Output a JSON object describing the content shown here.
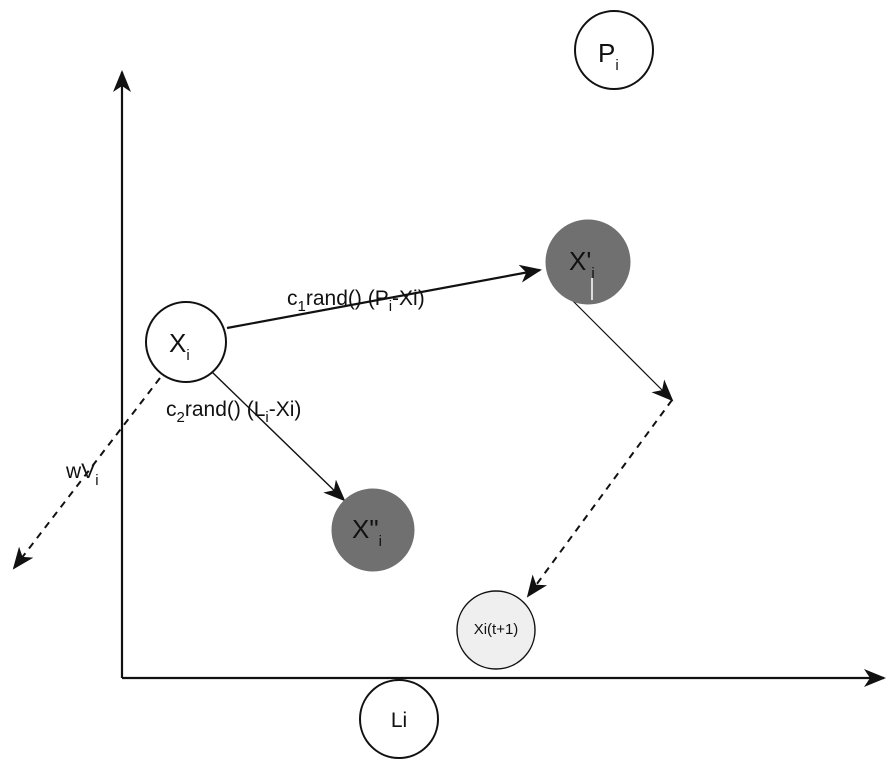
{
  "colors": {
    "background": "#ffffff",
    "stroke": "#111111",
    "node_white": "#ffffff",
    "node_dark": "#707070",
    "node_light": "#efefef"
  },
  "nodes": {
    "p": {
      "main": "P",
      "sub": "i"
    },
    "xi": {
      "main": "X",
      "sub": "i"
    },
    "x_prime": {
      "main": "X'",
      "sub": "i"
    },
    "x_double_prime": {
      "main": "X\"",
      "sub": "i"
    },
    "x_next": {
      "main": "Xi(t+1)"
    },
    "l": {
      "main": "Li"
    }
  },
  "labels": {
    "c1": {
      "c": "c",
      "sub": "1",
      "rand": "rand() (P",
      "psub": "i",
      "rest": "-Xi)"
    },
    "c2": {
      "c": "c",
      "sub": "2",
      "rand": "rand() (L",
      "lsub": "i",
      "rest": "-Xi)"
    },
    "wv": {
      "main": "wV",
      "sub": "i"
    }
  }
}
